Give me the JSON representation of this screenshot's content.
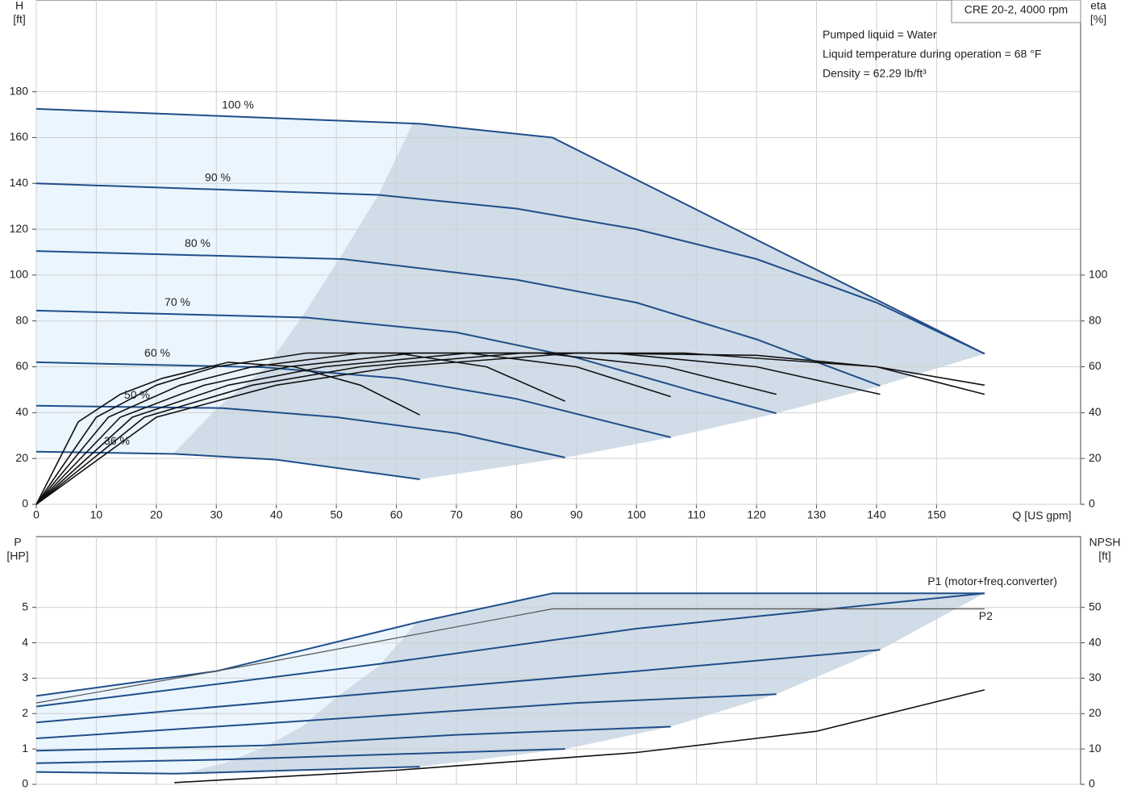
{
  "chart_data": [
    {
      "type": "line",
      "title": "CRE 20-2, 4000 rpm",
      "notes": [
        "Pumped liquid = Water",
        "Liquid temperature during operation = 68 °F",
        "Density = 62.29 lb/ft³"
      ],
      "ylabel": "H",
      "yunit": "[ft]",
      "y2label": "eta",
      "y2unit": "[%]",
      "xlabel": "Q [US gpm]",
      "xlim": [
        0,
        174
      ],
      "xticks": [
        0,
        10,
        20,
        30,
        40,
        50,
        60,
        70,
        80,
        90,
        100,
        110,
        120,
        130,
        140,
        150
      ],
      "ylim": [
        0,
        220
      ],
      "yticks": [
        0,
        20,
        40,
        60,
        80,
        100,
        120,
        140,
        160,
        180
      ],
      "y2lim": [
        0,
        220
      ],
      "y2ticks": [
        0,
        20,
        40,
        60,
        80,
        100
      ],
      "grid": true,
      "series": [
        {
          "name": "100 %",
          "color": "#1f4e89",
          "x": [
            0,
            64,
            86,
            158
          ],
          "values": [
            172.5,
            166,
            160,
            65.7
          ]
        },
        {
          "name": "90 %",
          "color": "#1f4e89",
          "x": [
            0,
            57,
            80,
            100,
            120,
            140,
            158
          ],
          "values": [
            140,
            135,
            129,
            120,
            107,
            88,
            65.7
          ]
        },
        {
          "name": "80 %",
          "color": "#1f4e89",
          "x": [
            0,
            51,
            80,
            100,
            120,
            140.6
          ],
          "values": [
            110.5,
            107,
            98,
            88,
            72,
            51.7
          ]
        },
        {
          "name": "70 %",
          "color": "#1f4e89",
          "x": [
            0,
            45,
            70,
            90,
            110,
            123.3
          ],
          "values": [
            84.5,
            81.5,
            75,
            64,
            49,
            39.7
          ]
        },
        {
          "name": "60 %",
          "color": "#1f4e89",
          "x": [
            0,
            38,
            60,
            80,
            105.7
          ],
          "values": [
            62,
            59.8,
            55,
            46,
            29.2
          ]
        },
        {
          "name": "50 %",
          "color": "#1f4e89",
          "x": [
            0,
            31,
            50,
            70,
            88.1
          ],
          "values": [
            43,
            42,
            38,
            31,
            20.4
          ]
        },
        {
          "name": "36 %",
          "color": "#1f4e89",
          "x": [
            0,
            23,
            40,
            63.9
          ],
          "values": [
            23,
            22,
            19.5,
            10.9
          ]
        },
        {
          "color": "#111111",
          "axis": "y2",
          "x": [
            0,
            20,
            40,
            60,
            90,
            120,
            140,
            158
          ],
          "values": [
            0,
            38,
            52,
            60,
            66,
            65,
            60,
            48
          ]
        },
        {
          "color": "#111111",
          "axis": "y2",
          "x": [
            0,
            18,
            36,
            54,
            81,
            108,
            140,
            158
          ],
          "values": [
            0,
            38,
            52,
            60,
            66,
            66,
            60,
            52
          ]
        },
        {
          "color": "#111111",
          "axis": "y2",
          "x": [
            0,
            16,
            32,
            48,
            72,
            96,
            120,
            140.6
          ],
          "values": [
            0,
            38,
            52,
            60,
            66,
            66,
            60,
            48
          ]
        },
        {
          "color": "#111111",
          "axis": "y2",
          "x": [
            0,
            14,
            28,
            42,
            63,
            84,
            105,
            123.3
          ],
          "values": [
            0,
            38,
            52,
            60,
            66,
            66,
            60,
            48
          ]
        },
        {
          "color": "#111111",
          "axis": "y2",
          "x": [
            0,
            12,
            24,
            36,
            54,
            72,
            90,
            105.7
          ],
          "values": [
            0,
            38,
            52,
            60,
            66,
            66,
            60,
            47
          ]
        },
        {
          "color": "#111111",
          "axis": "y2",
          "x": [
            0,
            10,
            20,
            30,
            45,
            60,
            75,
            88.1
          ],
          "values": [
            0,
            38,
            52,
            60,
            66,
            66,
            60,
            45
          ]
        },
        {
          "color": "#111111",
          "axis": "y2",
          "x": [
            0,
            7,
            14,
            21,
            32,
            43,
            54,
            63.9
          ],
          "values": [
            0,
            36,
            48,
            55,
            62,
            60,
            52,
            39
          ]
        }
      ]
    },
    {
      "type": "line",
      "ylabel": "P",
      "yunit": "[HP]",
      "y2label": "NPSH",
      "y2unit": "[ft]",
      "xlim": [
        0,
        174
      ],
      "ylim": [
        0,
        7
      ],
      "yticks": [
        0,
        1,
        2,
        3,
        4,
        5
      ],
      "y2lim": [
        0,
        70
      ],
      "y2ticks": [
        0,
        10,
        20,
        30,
        40,
        50
      ],
      "grid": true,
      "series": [
        {
          "name": "P1 (motor+freq.converter)",
          "color": "#1f4e89",
          "x": [
            0,
            30,
            64,
            86,
            158
          ],
          "values": [
            2.5,
            3.2,
            4.6,
            5.4,
            5.4
          ]
        },
        {
          "color": "#1f4e89",
          "x": [
            0,
            57,
            100,
            158
          ],
          "values": [
            2.2,
            3.4,
            4.4,
            5.4
          ]
        },
        {
          "color": "#1f4e89",
          "x": [
            0,
            51,
            100,
            140.6
          ],
          "values": [
            1.75,
            2.5,
            3.2,
            3.8
          ]
        },
        {
          "color": "#1f4e89",
          "x": [
            0,
            45,
            90,
            123.3
          ],
          "values": [
            1.3,
            1.8,
            2.3,
            2.55
          ]
        },
        {
          "color": "#1f4e89",
          "x": [
            0,
            38,
            70,
            105.7
          ],
          "values": [
            0.95,
            1.1,
            1.4,
            1.63
          ]
        },
        {
          "color": "#1f4e89",
          "x": [
            0,
            31,
            88.1
          ],
          "values": [
            0.6,
            0.7,
            1
          ]
        },
        {
          "color": "#1f4e89",
          "x": [
            0,
            23,
            63.9
          ],
          "values": [
            0.35,
            0.3,
            0.5
          ]
        },
        {
          "name": "P2",
          "color": "#555555",
          "x": [
            0,
            40,
            86,
            158
          ],
          "values": [
            2.3,
            3.5,
            4.96,
            4.96
          ]
        },
        {
          "color": "#111111",
          "axis": "y2",
          "x": [
            23,
            60,
            100,
            130,
            158
          ],
          "values": [
            0.5,
            4,
            9,
            15,
            26.7
          ]
        }
      ]
    }
  ]
}
